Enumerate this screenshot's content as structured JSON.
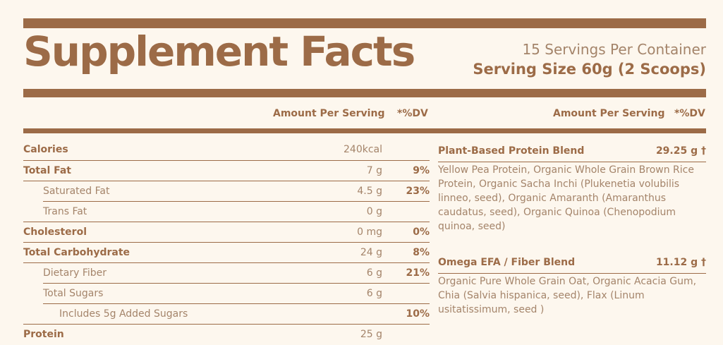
{
  "header": {
    "title": "Supplement Facts",
    "servings_per_container": "15 Servings Per Container",
    "serving_size": "Serving Size 60g (2 Scoops)"
  },
  "columns": {
    "amount_per_serving": "Amount Per Serving",
    "dv": "*%DV"
  },
  "nutrients": [
    {
      "label": "Calories",
      "amount": "240kcal",
      "dv": ""
    },
    {
      "label": "Total Fat",
      "amount": "7 g",
      "dv": "9%"
    },
    {
      "label": "Saturated Fat",
      "amount": "4.5 g",
      "dv": "23%"
    },
    {
      "label": "Trans Fat",
      "amount": "0 g",
      "dv": ""
    },
    {
      "label": "Cholesterol",
      "amount": "0 mg",
      "dv": "0%"
    },
    {
      "label": "Total Carbohydrate",
      "amount": "24 g",
      "dv": "8%"
    },
    {
      "label": "Dietary Fiber",
      "amount": "6 g",
      "dv": "21%"
    },
    {
      "label": "Total Sugars",
      "amount": "6 g",
      "dv": ""
    },
    {
      "label": "Includes 5g Added Sugars",
      "amount": "",
      "dv": "10%"
    },
    {
      "label": "Protein",
      "amount": "25 g",
      "dv": ""
    }
  ],
  "blends": [
    {
      "name": "Plant-Based Protein Blend",
      "amount": "29.25 g †",
      "description": "Yellow Pea Protein, Organic Whole Grain Brown Rice Protein, Organic Sacha Inchi (Plukenetia volubilis linneo, seed), Organic Amaranth (Amaranthus caudatus, seed), Organic Quinoa (Chenopodium quinoa, seed)"
    },
    {
      "name": "Omega EFA / Fiber Blend",
      "amount": "11.12 g †",
      "description": "Organic Pure Whole Grain Oat, Organic Acacia Gum,  Chia (Salvia hispanica, seed), Flax (Linum usitatissimum, seed )"
    }
  ],
  "colors": {
    "background": "#fdf7ee",
    "brand_brown": "#9c6b47",
    "text_light": "#a4846a"
  }
}
